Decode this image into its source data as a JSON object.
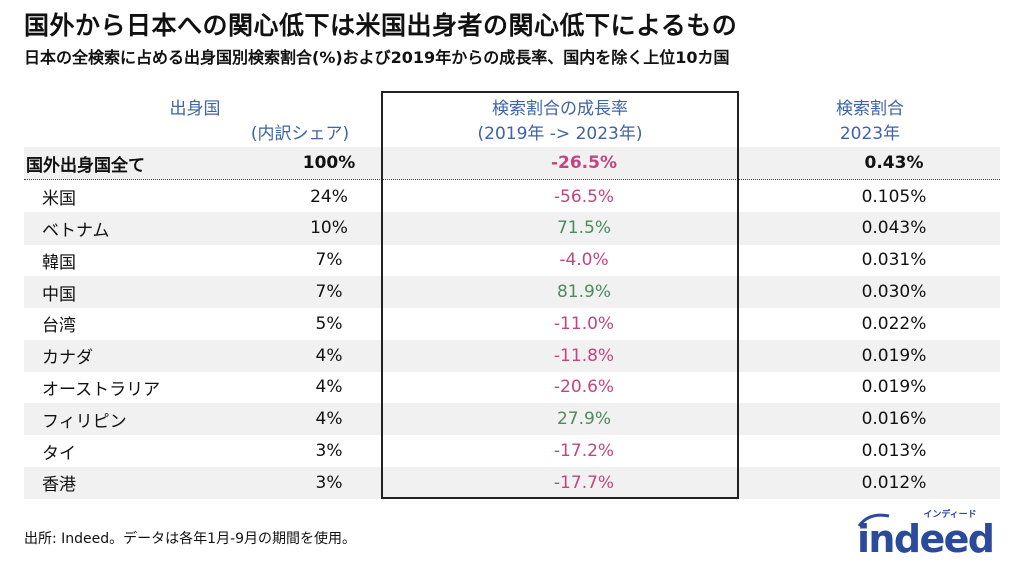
{
  "title": "国外から日本への関心低下は米国出身者の関心低下によるもの",
  "subtitle": "日本の全検索に占める出身国別検索割合(%)および2019年からの成長率、国内を除く上位10カ国",
  "colors": {
    "header": "#3d63a8",
    "negative": "#c2457f",
    "positive": "#4d8a5e",
    "stripe": "#f1f1f1"
  },
  "chart_data": {
    "type": "table",
    "columns": [
      {
        "line1": "出身国",
        "line2": "(内訳シェア)"
      },
      {
        "line1": "検索割合の成長率",
        "line2": "(2019年 -> 2023年)"
      },
      {
        "line1": "検索割合",
        "line2": "2023年"
      }
    ],
    "total": {
      "country": "国外出身国全て",
      "share": "100%",
      "growth": "-26.5%",
      "ratio": "0.43%"
    },
    "rows": [
      {
        "country": "米国",
        "share": "24%",
        "growth": "-56.5%",
        "ratio": "0.105%"
      },
      {
        "country": "ベトナム",
        "share": "10%",
        "growth": "71.5%",
        "ratio": "0.043%"
      },
      {
        "country": "韓国",
        "share": "7%",
        "growth": "-4.0%",
        "ratio": "0.031%"
      },
      {
        "country": "中国",
        "share": "7%",
        "growth": "81.9%",
        "ratio": "0.030%"
      },
      {
        "country": "台湾",
        "share": "5%",
        "growth": "-11.0%",
        "ratio": "0.022%"
      },
      {
        "country": "カナダ",
        "share": "4%",
        "growth": "-11.8%",
        "ratio": "0.019%"
      },
      {
        "country": "オーストラリア",
        "share": "4%",
        "growth": "-20.6%",
        "ratio": "0.019%"
      },
      {
        "country": "フィリピン",
        "share": "4%",
        "growth": "27.9%",
        "ratio": "0.016%"
      },
      {
        "country": "タイ",
        "share": "3%",
        "growth": "-17.2%",
        "ratio": "0.013%"
      },
      {
        "country": "香港",
        "share": "3%",
        "growth": "-17.7%",
        "ratio": "0.012%"
      }
    ]
  },
  "source": "出所: Indeed。データは各年1月-9月の期間を使用。",
  "logo": {
    "text": "indeed",
    "kana": "インディード"
  }
}
